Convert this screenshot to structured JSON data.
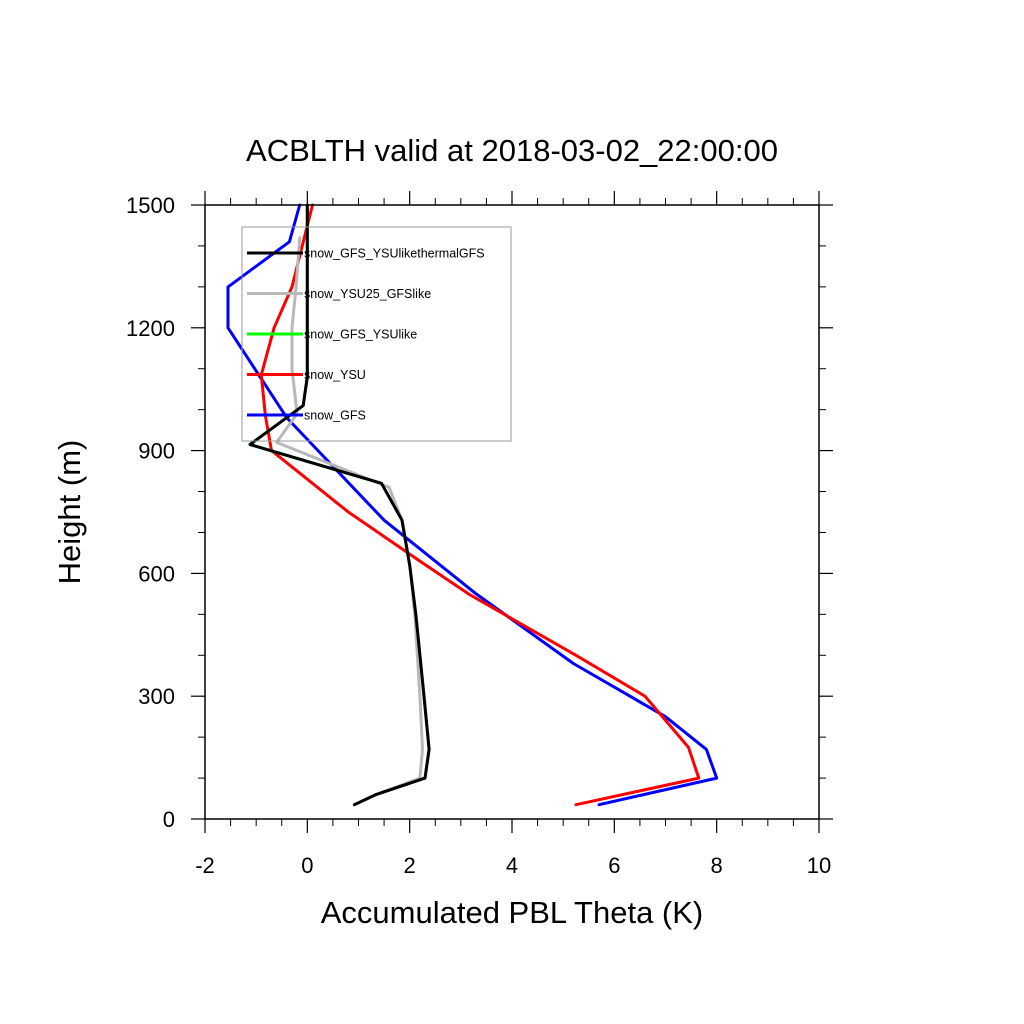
{
  "chart_data": {
    "type": "line",
    "title": "ACBLTH valid at 2018-03-02_22:00:00",
    "xlabel": "Accumulated PBL Theta (K)",
    "ylabel": "Height (m)",
    "xlim": [
      -2,
      10
    ],
    "ylim": [
      0,
      1500
    ],
    "x_ticks": [
      -2,
      0,
      2,
      4,
      6,
      8,
      10
    ],
    "y_ticks": [
      0,
      300,
      600,
      900,
      1200,
      1500
    ],
    "x_minor_step": 0.5,
    "y_minor_step": 100,
    "grid": false,
    "legend_position": "top-left",
    "series": [
      {
        "name": "snow_GFS_YSUlikethermalGFS",
        "color": "#000000",
        "x": [
          0.92,
          1.35,
          2.3,
          2.38,
          2.28,
          2.12,
          2.0,
          1.85,
          1.45,
          -1.12,
          -0.08,
          0.0,
          0.0,
          0.0,
          0.0
        ],
        "y": [
          35,
          60,
          100,
          170,
          300,
          500,
          620,
          730,
          820,
          915,
          1010,
          1080,
          1200,
          1350,
          1500
        ]
      },
      {
        "name": "snow_YSU25_GFSlike",
        "color": "#b8b8b8",
        "x": [
          0.92,
          1.35,
          2.2,
          2.25,
          2.2,
          2.1,
          2.0,
          1.85,
          1.6,
          -0.6,
          -0.2,
          -0.3,
          -0.3,
          -0.22,
          -0.15
        ],
        "y": [
          35,
          60,
          100,
          170,
          300,
          500,
          620,
          730,
          810,
          920,
          990,
          1100,
          1200,
          1300,
          1420
        ]
      },
      {
        "name": "snow_GFS_YSUlike",
        "color": "#00ff00",
        "x": [
          0.92,
          1.35,
          2.3,
          2.38,
          2.28,
          2.12,
          2.0,
          1.85,
          1.45,
          -1.12,
          -0.08,
          0.0,
          0.0,
          0.0,
          0.0
        ],
        "y": [
          35,
          60,
          100,
          170,
          300,
          500,
          620,
          730,
          820,
          915,
          1010,
          1080,
          1200,
          1350,
          1500
        ]
      },
      {
        "name": "snow_YSU",
        "color": "#ff0000",
        "x": [
          5.25,
          7.65,
          7.45,
          6.6,
          5.25,
          3.15,
          2.2,
          0.8,
          -0.7,
          -0.82,
          -0.9,
          -0.65,
          -0.3,
          0.1
        ],
        "y": [
          35,
          100,
          175,
          300,
          400,
          550,
          630,
          750,
          900,
          985,
          1085,
          1200,
          1300,
          1500
        ]
      },
      {
        "name": "snow_GFS",
        "color": "#0000ff",
        "x": [
          5.7,
          8.0,
          7.8,
          7.0,
          5.2,
          3.3,
          1.5,
          -0.4,
          -1.55,
          -1.55,
          -0.35,
          -0.15
        ],
        "y": [
          35,
          100,
          170,
          250,
          380,
          550,
          730,
          980,
          1200,
          1300,
          1410,
          1500
        ]
      }
    ]
  }
}
